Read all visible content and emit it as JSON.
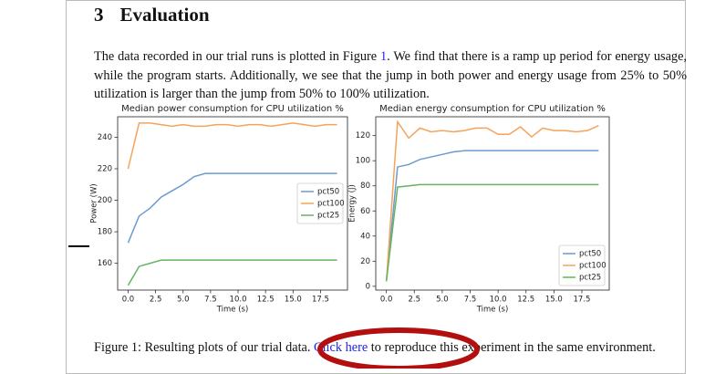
{
  "section": {
    "number": "3",
    "title": "Evaluation"
  },
  "paragraph": {
    "before": "The data recorded in our trial runs is plotted in Figure ",
    "link": "1",
    "after": ". We find that there is a ramp up period for energy usage, while the program starts. Additionally, we see that the jump in both power and energy usage from 25% to 50% utilization is larger than the jump from 50% to 100% utilization."
  },
  "chart_data": [
    {
      "type": "line",
      "title": "Median power consumption for CPU utilization %",
      "xlabel": "Time (s)",
      "ylabel": "Power (W)",
      "x": [
        0,
        1,
        2,
        3,
        4,
        5,
        6,
        7,
        8,
        9,
        10,
        11,
        12,
        13,
        14,
        15,
        16,
        17,
        18,
        19
      ],
      "series": [
        {
          "name": "pct50",
          "color": "#6a9bd0",
          "values": [
            173,
            190,
            195,
            202,
            206,
            210,
            215,
            217,
            217,
            217,
            217,
            217,
            217,
            217,
            217,
            217,
            217,
            217,
            217,
            217
          ]
        },
        {
          "name": "pct100",
          "color": "#f5a35c",
          "values": [
            220,
            249,
            249,
            248,
            247,
            248,
            247,
            247,
            248,
            248,
            247,
            248,
            248,
            247,
            248,
            249,
            248,
            247,
            248,
            248
          ]
        },
        {
          "name": "pct25",
          "color": "#62b562",
          "values": [
            146,
            158,
            160,
            162,
            162,
            162,
            162,
            162,
            162,
            162,
            162,
            162,
            162,
            162,
            162,
            162,
            162,
            162,
            162,
            162
          ]
        }
      ],
      "xlim": [
        -0.95,
        19.95
      ],
      "xticks": [
        {
          "value": 0,
          "label": "0.0"
        },
        {
          "value": 2.5,
          "label": "2.5"
        },
        {
          "value": 5,
          "label": "5.0"
        },
        {
          "value": 7.5,
          "label": "7.5"
        },
        {
          "value": 10,
          "label": "10.0"
        },
        {
          "value": 12.5,
          "label": "12.5"
        },
        {
          "value": 15,
          "label": "15.0"
        },
        {
          "value": 17.5,
          "label": "17.5"
        }
      ],
      "ylim": [
        143,
        253
      ],
      "yticks": [
        160,
        180,
        200,
        220,
        240
      ],
      "legend": "center right"
    },
    {
      "type": "line",
      "title": "Median energy consumption for CPU utilization %",
      "xlabel": "Time (s)",
      "ylabel": "Energy (J)",
      "x": [
        0,
        1,
        2,
        3,
        4,
        5,
        6,
        7,
        8,
        9,
        10,
        11,
        12,
        13,
        14,
        15,
        16,
        17,
        18,
        19
      ],
      "series": [
        {
          "name": "pct50",
          "color": "#6a9bd0",
          "values": [
            4,
            95,
            97,
            101,
            103,
            105,
            107,
            108,
            108,
            108,
            108,
            108,
            108,
            108,
            108,
            108,
            108,
            108,
            108,
            108
          ]
        },
        {
          "name": "pct100",
          "color": "#f5a35c",
          "values": [
            4,
            131,
            118,
            126,
            123,
            124,
            123,
            124,
            126,
            126,
            121,
            121,
            127,
            119,
            126,
            124,
            124,
            123,
            124,
            128
          ]
        },
        {
          "name": "pct25",
          "color": "#62b562",
          "values": [
            4,
            79,
            80,
            81,
            81,
            81,
            81,
            81,
            81,
            81,
            81,
            81,
            81,
            81,
            81,
            81,
            81,
            81,
            81,
            81
          ]
        }
      ],
      "xlim": [
        -0.95,
        19.95
      ],
      "xticks": [
        {
          "value": 0,
          "label": "0.0"
        },
        {
          "value": 2.5,
          "label": "2.5"
        },
        {
          "value": 5,
          "label": "5.0"
        },
        {
          "value": 7.5,
          "label": "7.5"
        },
        {
          "value": 10,
          "label": "10.0"
        },
        {
          "value": 12.5,
          "label": "12.5"
        },
        {
          "value": 15,
          "label": "15.0"
        },
        {
          "value": 17.5,
          "label": "17.5"
        }
      ],
      "ylim": [
        -3,
        135
      ],
      "yticks": [
        0,
        20,
        40,
        60,
        80,
        100,
        120
      ],
      "legend": "lower right"
    }
  ],
  "caption": {
    "label": "Figure 1:",
    "before": " Resulting plots of our trial data. ",
    "link": "Click here",
    "after": " to reproduce this experiment in the same environment."
  }
}
